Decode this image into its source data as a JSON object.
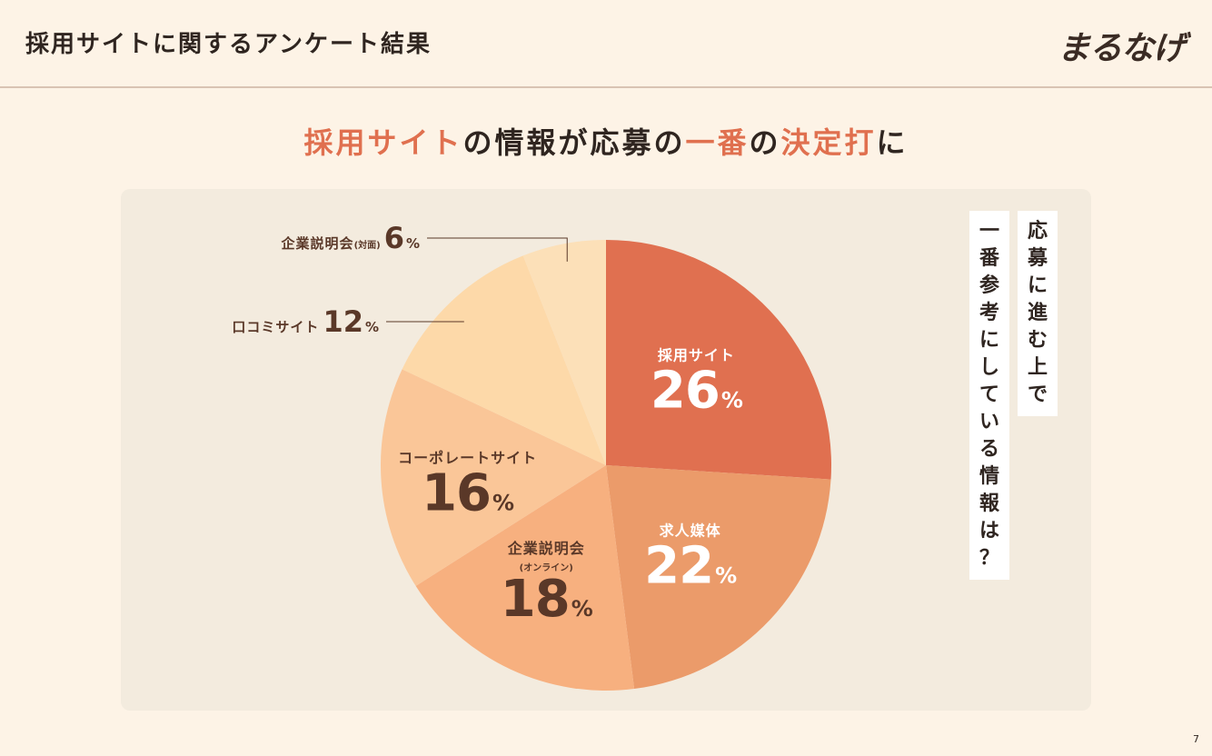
{
  "header": {
    "title": "採用サイトに関するアンケート結果",
    "logo": "まるなげ"
  },
  "headline": {
    "part1": "採用サイト",
    "part2": "の情報が応募の",
    "part3": "一番",
    "part4": "の",
    "part5": "決定打",
    "part6": "に"
  },
  "question": {
    "line1": "応募に進む上で",
    "line2": "一番参考にしている情報は？"
  },
  "page_number": "7",
  "colors": {
    "accent": "#e0704f",
    "slice_colors": [
      "#e07050",
      "#eb9b6a",
      "#f7b07f",
      "#fac698",
      "#fdd9a9",
      "#fce0b8"
    ]
  },
  "chart_data": {
    "type": "pie",
    "start_angle_deg": 0,
    "direction": "clockwise",
    "slices": [
      {
        "label": "採用サイト",
        "sublabel": "",
        "value": 26,
        "display": "26",
        "unit": "%"
      },
      {
        "label": "求人媒体",
        "sublabel": "",
        "value": 22,
        "display": "22",
        "unit": "%"
      },
      {
        "label": "企業説明会",
        "sublabel": "(オンライン)",
        "value": 18,
        "display": "18",
        "unit": "%"
      },
      {
        "label": "コーポレートサイト",
        "sublabel": "",
        "value": 16,
        "display": "16",
        "unit": "%"
      },
      {
        "label": "口コミサイト",
        "sublabel": "",
        "value": 12,
        "display": "12",
        "unit": "%"
      },
      {
        "label": "企業説明会",
        "sublabel": "(対面)",
        "value": 6,
        "display": "6",
        "unit": "%"
      }
    ]
  }
}
